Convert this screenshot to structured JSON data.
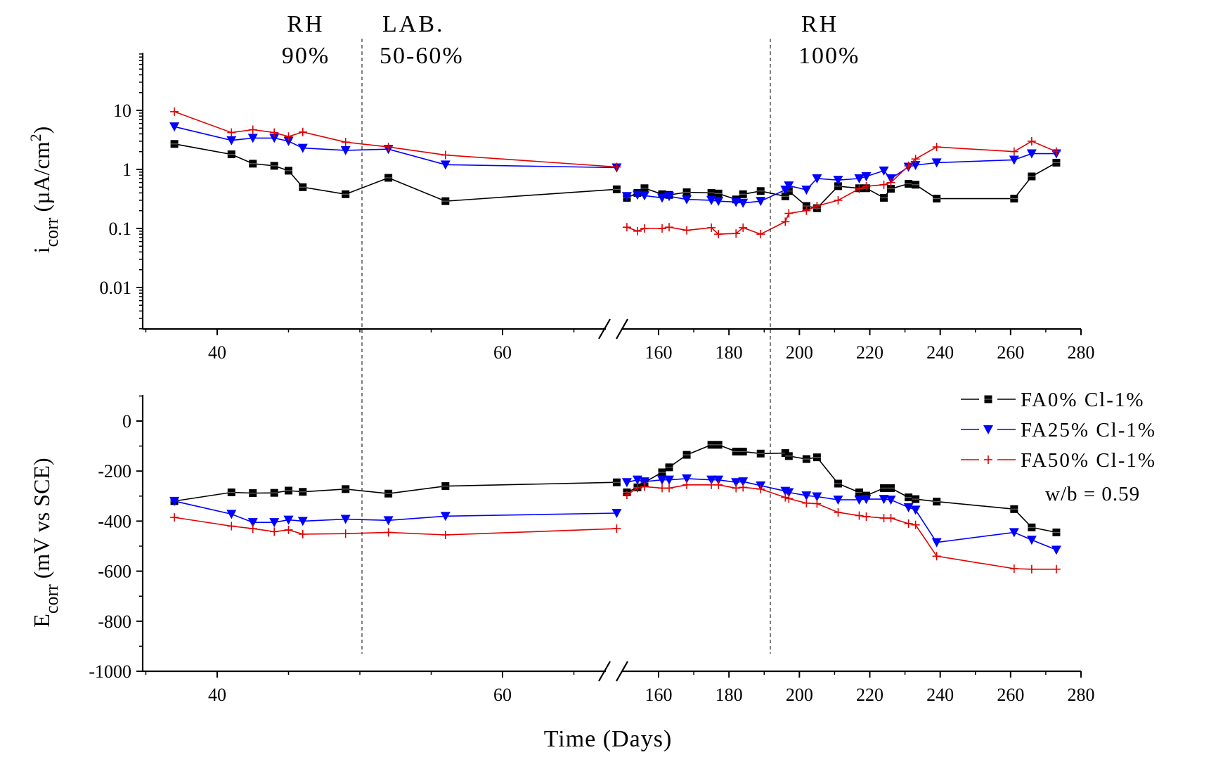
{
  "chart_data": [
    {
      "type": "line",
      "panel": "top",
      "ylabel_main": "i",
      "ylabel_sub": "corr",
      "ylabel_rest": " (µA/cm",
      "ylabel_sup": "2",
      "ylabel_close": ")",
      "yscale": "log",
      "ylim": [
        0.003,
        60
      ],
      "yticks": [
        {
          "value": 10,
          "label": "10"
        },
        {
          "value": 1,
          "label": "1"
        },
        {
          "value": 0.1,
          "label": "0.1"
        },
        {
          "value": 0.01,
          "label": "0.01"
        }
      ],
      "x_segments": [
        [
          35,
          70
        ],
        [
          149,
          280
        ]
      ],
      "xticks": [
        {
          "value": 40,
          "label": "40"
        },
        {
          "value": 60,
          "label": "60"
        },
        {
          "value": 160,
          "label": "160"
        },
        {
          "value": 180,
          "label": "180"
        },
        {
          "value": 200,
          "label": "200"
        },
        {
          "value": 220,
          "label": "220"
        },
        {
          "value": 240,
          "label": "240"
        },
        {
          "value": 260,
          "label": "260"
        },
        {
          "value": 280,
          "label": "280"
        }
      ],
      "series": [
        {
          "name": "FA0% Cl-1%",
          "color": "#000000",
          "marker": "square",
          "x": [
            37,
            41,
            42.5,
            44,
            45,
            46,
            49,
            52,
            56,
            68,
            151,
            154,
            156,
            161,
            163,
            168,
            175,
            177,
            182,
            184,
            189,
            196,
            197,
            202,
            205,
            211,
            217,
            219,
            224,
            226,
            231,
            233,
            239,
            261,
            266,
            273
          ],
          "y": [
            2.7,
            1.8,
            1.25,
            1.15,
            0.95,
            0.5,
            0.38,
            0.72,
            0.29,
            0.46,
            0.33,
            0.4,
            0.48,
            0.38,
            0.37,
            0.41,
            0.4,
            0.39,
            0.31,
            0.38,
            0.43,
            0.35,
            0.43,
            0.24,
            0.22,
            0.52,
            0.48,
            0.48,
            0.33,
            0.47,
            0.57,
            0.55,
            0.32,
            0.32,
            0.76,
            1.3
          ]
        },
        {
          "name": "FA25% Cl-1%",
          "color": "#0000ff",
          "marker": "triangle-down",
          "x": [
            37,
            41,
            42.5,
            44,
            45,
            46,
            49,
            52,
            56,
            68,
            151,
            154,
            156,
            161,
            163,
            168,
            175,
            177,
            182,
            184,
            189,
            196,
            197,
            202,
            205,
            211,
            217,
            219,
            224,
            226,
            231,
            233,
            239,
            261,
            266,
            273
          ],
          "y": [
            5.3,
            3.1,
            3.4,
            3.4,
            3.0,
            2.3,
            2.1,
            2.2,
            1.2,
            1.07,
            0.35,
            0.37,
            0.36,
            0.33,
            0.35,
            0.31,
            0.3,
            0.29,
            0.28,
            0.27,
            0.29,
            0.45,
            0.53,
            0.45,
            0.7,
            0.66,
            0.7,
            0.76,
            0.95,
            0.7,
            1.1,
            1.18,
            1.3,
            1.45,
            1.85,
            1.85
          ]
        },
        {
          "name": "FA50% Cl-1%",
          "color": "#e00000",
          "marker": "plus",
          "x": [
            37,
            41,
            42.5,
            44,
            45,
            46,
            49,
            52,
            56,
            68,
            151,
            154,
            156,
            161,
            163,
            168,
            175,
            177,
            182,
            184,
            189,
            196,
            197,
            202,
            205,
            211,
            217,
            219,
            224,
            226,
            231,
            233,
            239,
            261,
            266,
            273
          ],
          "y": [
            9.5,
            4.2,
            4.7,
            4.2,
            3.6,
            4.3,
            2.9,
            2.4,
            1.75,
            1.1,
            0.105,
            0.09,
            0.1,
            0.1,
            0.105,
            0.093,
            0.103,
            0.08,
            0.082,
            0.103,
            0.08,
            0.13,
            0.18,
            0.2,
            0.24,
            0.3,
            0.47,
            0.52,
            0.55,
            0.6,
            1.15,
            1.5,
            2.4,
            2.0,
            3.0,
            2.0
          ]
        }
      ],
      "annotations": [
        {
          "line1": "RH",
          "line2": "90%"
        },
        {
          "line1": "LAB.",
          "line2": "50-60%"
        },
        {
          "line1": "RH",
          "line2": "100%"
        }
      ]
    },
    {
      "type": "line",
      "panel": "bottom",
      "ylabel_main": "E",
      "ylabel_sub": "corr",
      "ylabel_rest": " (mV vs  SCE)",
      "ylim": [
        -1000,
        100
      ],
      "yticks": [
        {
          "value": 0,
          "label": "0"
        },
        {
          "value": -200,
          "label": "-200"
        },
        {
          "value": -400,
          "label": "-400"
        },
        {
          "value": -600,
          "label": "-600"
        },
        {
          "value": -800,
          "label": "-800"
        },
        {
          "value": -1000,
          "label": "-1000"
        }
      ],
      "x_segments": [
        [
          35,
          70
        ],
        [
          149,
          280
        ]
      ],
      "xticks": [
        {
          "value": 40,
          "label": "40"
        },
        {
          "value": 60,
          "label": "60"
        },
        {
          "value": 160,
          "label": "160"
        },
        {
          "value": 180,
          "label": "180"
        },
        {
          "value": 200,
          "label": "200"
        },
        {
          "value": 220,
          "label": "220"
        },
        {
          "value": 240,
          "label": "240"
        },
        {
          "value": 260,
          "label": "260"
        },
        {
          "value": 280,
          "label": "280"
        }
      ],
      "xlabel": "Time (Days)",
      "series": [
        {
          "name": "FA0% Cl-1%",
          "color": "#000000",
          "marker": "square",
          "x": [
            37,
            41,
            42.5,
            44,
            45,
            46,
            49,
            52,
            56,
            68,
            151,
            154,
            156,
            161,
            163,
            168,
            175,
            177,
            182,
            184,
            189,
            196,
            197,
            202,
            205,
            211,
            217,
            219,
            224,
            226,
            231,
            233,
            239,
            261,
            266,
            273
          ],
          "y": [
            -320,
            -285,
            -288,
            -287,
            -278,
            -283,
            -272,
            -290,
            -260,
            -245,
            -285,
            -265,
            -245,
            -205,
            -185,
            -135,
            -95,
            -95,
            -122,
            -122,
            -130,
            -128,
            -140,
            -152,
            -145,
            -250,
            -285,
            -298,
            -268,
            -268,
            -305,
            -312,
            -322,
            -352,
            -425,
            -445
          ]
        },
        {
          "name": "FA25% Cl-1%",
          "color": "#0000ff",
          "marker": "triangle-down",
          "x": [
            37,
            41,
            42.5,
            44,
            45,
            46,
            49,
            52,
            56,
            68,
            151,
            154,
            156,
            161,
            163,
            168,
            175,
            177,
            182,
            184,
            189,
            196,
            197,
            202,
            205,
            211,
            217,
            219,
            224,
            226,
            231,
            233,
            239,
            261,
            266,
            273
          ],
          "y": [
            -320,
            -372,
            -405,
            -405,
            -395,
            -400,
            -392,
            -397,
            -380,
            -368,
            -245,
            -235,
            -242,
            -235,
            -235,
            -230,
            -235,
            -235,
            -245,
            -242,
            -258,
            -280,
            -285,
            -298,
            -302,
            -315,
            -315,
            -312,
            -312,
            -315,
            -345,
            -355,
            -485,
            -445,
            -475,
            -515
          ]
        },
        {
          "name": "FA50% Cl-1%",
          "color": "#e00000",
          "marker": "plus",
          "x": [
            37,
            41,
            42.5,
            44,
            45,
            46,
            49,
            52,
            56,
            68,
            151,
            154,
            156,
            161,
            163,
            168,
            175,
            177,
            182,
            184,
            189,
            196,
            197,
            202,
            205,
            211,
            217,
            219,
            224,
            226,
            231,
            233,
            239,
            261,
            266,
            273
          ],
          "y": [
            -385,
            -420,
            -430,
            -442,
            -435,
            -452,
            -450,
            -445,
            -455,
            -430,
            -295,
            -268,
            -262,
            -268,
            -268,
            -255,
            -255,
            -255,
            -268,
            -265,
            -272,
            -305,
            -310,
            -328,
            -330,
            -365,
            -378,
            -382,
            -388,
            -388,
            -410,
            -415,
            -540,
            -590,
            -592,
            -592
          ]
        }
      ],
      "legend": {
        "placement": "right",
        "entries": [
          "FA0% Cl-1%",
          "FA25% Cl-1%",
          "FA50% Cl-1%"
        ],
        "note": "w/b = 0.59"
      }
    }
  ]
}
